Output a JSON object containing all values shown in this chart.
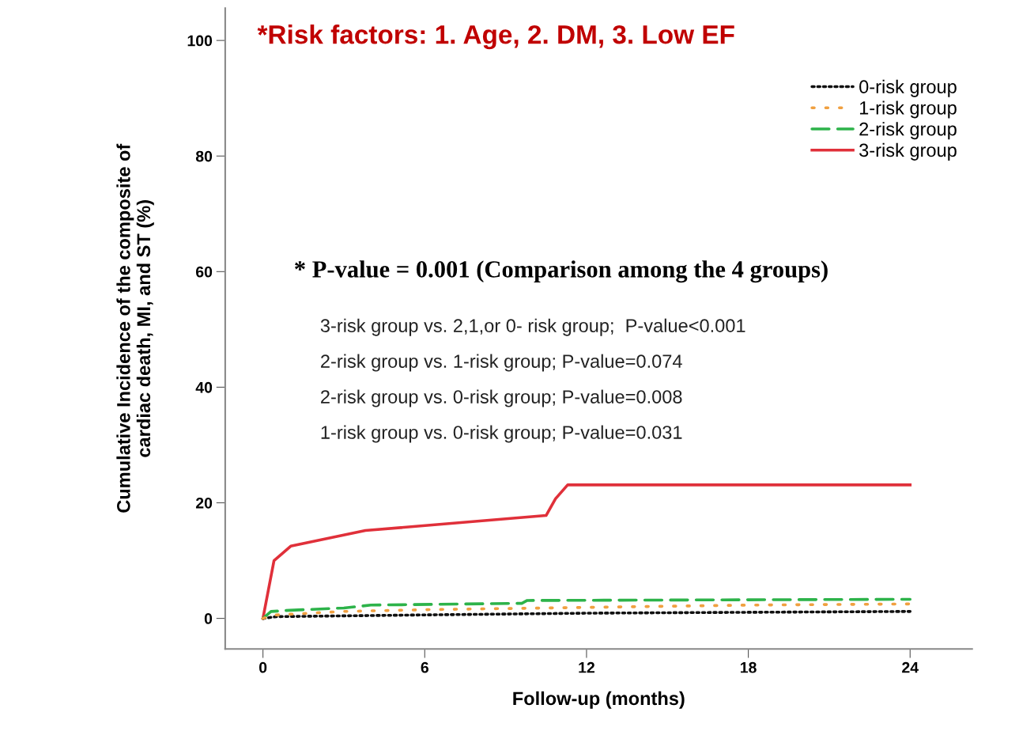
{
  "chart_data": {
    "type": "line",
    "title": "*Risk factors: 1. Age, 2. DM, 3. Low EF",
    "xlabel": "Follow-up (months)",
    "ylabel": "Cumulative Incidence of the composite of\ncardiac death, MI, and ST (%)",
    "xlim": [
      -1.4,
      26.3
    ],
    "ylim": [
      -5.3,
      105.6
    ],
    "xticks": [
      0,
      6,
      12,
      18,
      24
    ],
    "yticks": [
      0,
      20,
      40,
      60,
      80,
      100
    ],
    "grid": false,
    "legend": "top right",
    "series": [
      {
        "name": "0-risk group",
        "color": "#111111",
        "line_style": "dotted",
        "x": [
          0,
          0.5,
          6,
          12,
          24
        ],
        "values": [
          0,
          0.3,
          0.6,
          0.9,
          1.2
        ]
      },
      {
        "name": "1-risk group",
        "color": "#f0a040",
        "line_style": "dotted",
        "x": [
          0,
          0.5,
          3,
          6,
          12,
          18,
          24
        ],
        "values": [
          0,
          0.6,
          1.2,
          1.5,
          1.9,
          2.3,
          2.5
        ]
      },
      {
        "name": "2-risk group",
        "color": "#2db34a",
        "line_style": "dashed",
        "x": [
          0,
          0.3,
          1,
          3,
          4,
          9.6,
          9.8,
          24
        ],
        "values": [
          0,
          1.2,
          1.4,
          1.8,
          2.3,
          2.6,
          3.1,
          3.3
        ]
      },
      {
        "name": "3-risk group",
        "color": "#e0303a",
        "line_style": "solid",
        "x": [
          0,
          0.41,
          1.03,
          3.8,
          10.5,
          10.85,
          11.3,
          24
        ],
        "values": [
          0,
          10.0,
          12.5,
          15.2,
          17.8,
          20.7,
          23.1,
          23.1
        ]
      }
    ],
    "annotations": [
      "* P-value = 0.001 (Comparison among the 4 groups)",
      "3-risk group vs. 2,1,or 0- risk group;  P-value<0.001",
      "2-risk group vs. 1-risk group; P-value=0.074",
      "2-risk group vs. 0-risk group; P-value=0.008",
      "1-risk group vs. 0-risk group; P-value=0.031"
    ]
  }
}
